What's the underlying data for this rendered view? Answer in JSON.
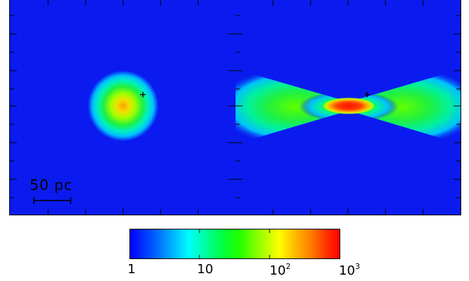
{
  "panels": {
    "left": {
      "name": "spherical-distribution",
      "marker": "+"
    },
    "right": {
      "name": "bipolar-distribution",
      "marker": "+"
    }
  },
  "scale_bar": {
    "label": "50 pc"
  },
  "colorbar": {
    "scale": "log",
    "range": [
      1,
      1000
    ],
    "tick_labels": [
      {
        "base": "1",
        "exp": ""
      },
      {
        "base": "10",
        "exp": ""
      },
      {
        "base": "10",
        "exp": "2"
      },
      {
        "base": "10",
        "exp": "3"
      }
    ],
    "colors": [
      "#0000ff",
      "#00ffff",
      "#00ff00",
      "#ffff00",
      "#ff0000"
    ]
  }
}
